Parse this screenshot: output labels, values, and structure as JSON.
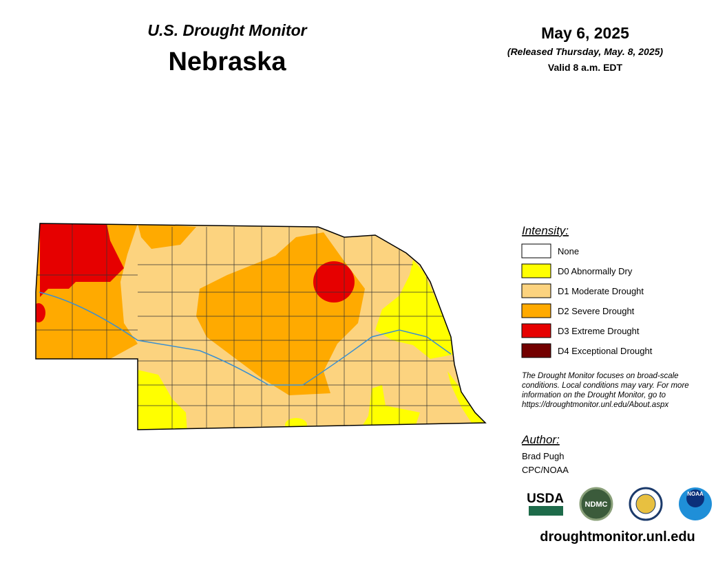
{
  "header": {
    "subtitle": "U.S. Drought Monitor",
    "title": "Nebraska"
  },
  "date": {
    "date": "May 6, 2025",
    "released": "(Released Thursday, May. 8, 2025)",
    "valid": "Valid 8 a.m. EDT"
  },
  "legend": {
    "title": "Intensity:",
    "items": [
      {
        "label": "None",
        "color": "#ffffff"
      },
      {
        "label": "D0 Abnormally Dry",
        "color": "#ffff00"
      },
      {
        "label": "D1 Moderate Drought",
        "color": "#fcd37f"
      },
      {
        "label": "D2 Severe Drought",
        "color": "#ffaa00"
      },
      {
        "label": "D3 Extreme Drought",
        "color": "#e60000"
      },
      {
        "label": "D4 Exceptional Drought",
        "color": "#730000"
      }
    ]
  },
  "note": [
    "The Drought Monitor focuses on broad-scale",
    "conditions. Local conditions may vary. For more",
    "information on the Drought Monitor, go to",
    "https://droughtmonitor.unl.edu/About.aspx"
  ],
  "author": {
    "title": "Author:",
    "name": "Brad Pugh",
    "org": "CPC/NOAA"
  },
  "logos": [
    "USDA",
    "NDMC",
    "NOAA"
  ],
  "url": "droughtmonitor.unl.edu"
}
